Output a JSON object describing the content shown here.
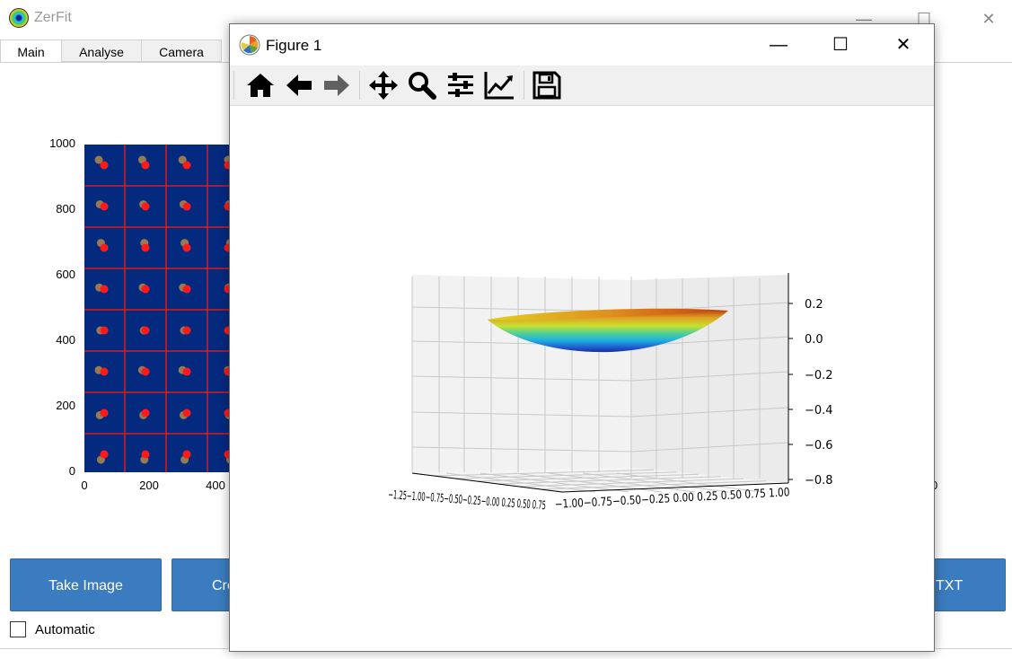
{
  "app": {
    "title": "ZerFit",
    "tabs": [
      {
        "label": "Main",
        "active": true
      },
      {
        "label": "Analyse",
        "active": false
      },
      {
        "label": "Camera",
        "active": false
      }
    ],
    "plot": {
      "y_ticks": [
        "1000",
        "800",
        "600",
        "400",
        "200",
        "0"
      ],
      "x_ticks": [
        "0",
        "200",
        "400"
      ],
      "colors": {
        "background": "#042a80",
        "grid": "#e01818",
        "spot_measured": "#ff1a1a",
        "spot_reference": "#b08a4a"
      }
    },
    "buttons": {
      "take_image": "Take Image",
      "create": "Cre",
      "txt": "TXT"
    },
    "automatic_label": "Automatic",
    "automatic_checked": false
  },
  "figure": {
    "title": "Figure 1",
    "toolbar": [
      "home-icon",
      "back-arrow-icon",
      "forward-arrow-icon",
      "pan-icon",
      "zoom-icon",
      "configure-subplots-icon",
      "edit-axis-icon",
      "save-icon"
    ],
    "z_ticks": [
      "0.2",
      "0.0",
      "−0.2",
      "−0.4",
      "−0.6",
      "−0.8"
    ],
    "x_tick_text": "−1.25−1.00−0.75−0.50−0.25−0.00 0.25 0.50 0.75",
    "y_tick_text": "−1.00−0.75−0.50−0.25 0.00 0.25 0.50 0.75 1.00"
  },
  "background_clipped_text": "0"
}
